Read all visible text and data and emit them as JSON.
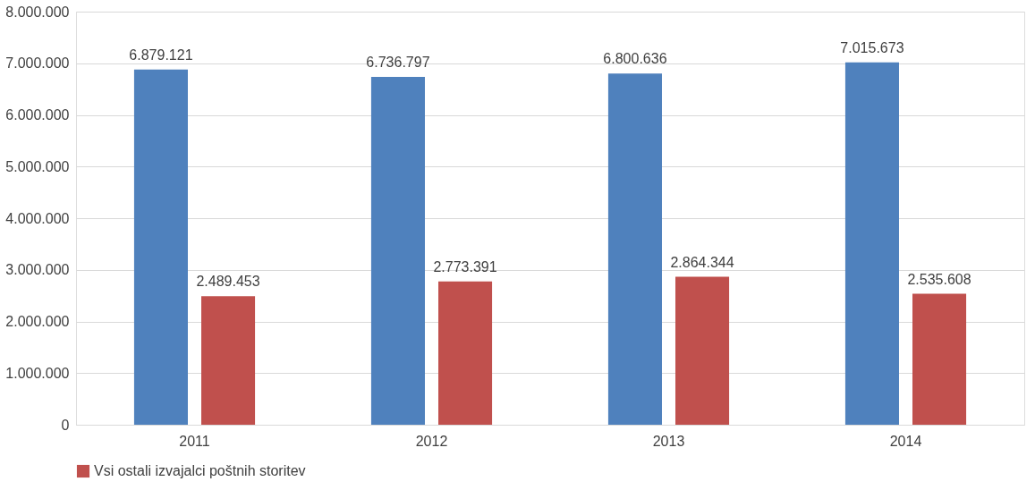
{
  "chart_data": {
    "type": "bar",
    "categories": [
      "2011",
      "2012",
      "2013",
      "2014"
    ],
    "series": [
      {
        "color": "#4f81bd",
        "values": [
          6879121,
          6736797,
          6800636,
          7015673
        ],
        "value_labels": [
          "6.879.121",
          "6.736.797",
          "6.800.636",
          "7.015.673"
        ]
      },
      {
        "name": "Vsi ostali izvajalci poštnih storitev",
        "color": "#c0504d",
        "values": [
          2489453,
          2773391,
          2864344,
          2535608
        ],
        "value_labels": [
          "2.489.453",
          "2.773.391",
          "2.864.344",
          "2.535.608"
        ]
      }
    ],
    "ylim": [
      0,
      8000000
    ],
    "yticks": [
      {
        "value": 0,
        "label": "0"
      },
      {
        "value": 1000000,
        "label": "1.000.000"
      },
      {
        "value": 2000000,
        "label": "2.000.000"
      },
      {
        "value": 3000000,
        "label": "3.000.000"
      },
      {
        "value": 4000000,
        "label": "4.000.000"
      },
      {
        "value": 5000000,
        "label": "5.000.000"
      },
      {
        "value": 6000000,
        "label": "6.000.000"
      },
      {
        "value": 7000000,
        "label": "7.000.000"
      },
      {
        "value": 8000000,
        "label": "8.000.000"
      }
    ],
    "grid": "y",
    "legend": "bottom"
  }
}
